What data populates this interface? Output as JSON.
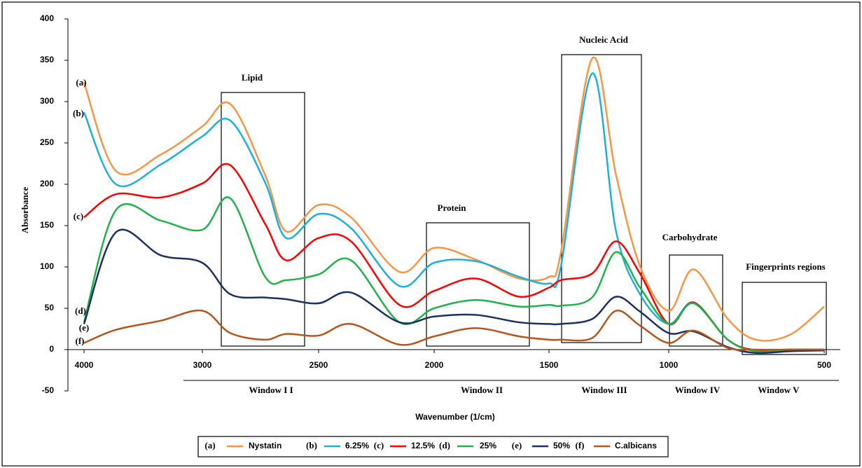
{
  "chart_data": {
    "type": "line",
    "x_label": "Wavenumber (1/cm)",
    "y_label": "Absorbance",
    "x": [
      4000,
      3730,
      3350,
      3000,
      2880,
      2730,
      2640,
      2500,
      2360,
      2150,
      2000,
      1820,
      1630,
      1500,
      1450,
      1320,
      1220,
      1120,
      1000,
      920,
      810,
      720,
      610,
      500
    ],
    "xlim": [
      4000,
      500
    ],
    "xticks": [
      4000,
      3000,
      2500,
      2000,
      1500,
      1000,
      500
    ],
    "ylim": [
      -50,
      400
    ],
    "yticks": [
      -50,
      0,
      50,
      100,
      150,
      200,
      250,
      300,
      350,
      400
    ],
    "series": [
      {
        "name": "Nystatin",
        "label": "(a)",
        "color": "#f79646",
        "values": [
          323,
          216,
          236,
          270,
          297,
          211,
          143,
          175,
          160,
          94,
          123,
          109,
          86,
          88,
          118,
          352,
          211,
          101,
          47,
          97,
          37,
          12,
          18,
          52
        ]
      },
      {
        "name": "6.25%",
        "label": "(b)",
        "color": "#1fb0d8",
        "values": [
          287,
          200,
          224,
          258,
          277,
          202,
          135,
          164,
          147,
          77,
          105,
          107,
          88,
          80,
          101,
          334,
          143,
          67,
          31,
          57,
          12,
          -1,
          0,
          0
        ]
      },
      {
        "name": "12.5%",
        "label": "(c)",
        "color": "#ff0000",
        "values": [
          160,
          188,
          184,
          201,
          223,
          152,
          108,
          135,
          131,
          54,
          71,
          86,
          64,
          75,
          84,
          92,
          131,
          92,
          31,
          57,
          12,
          -1,
          0,
          0
        ]
      },
      {
        "name": "25%",
        "label": "(d)",
        "color": "#22b14c",
        "values": [
          33,
          169,
          156,
          145,
          183,
          88,
          84,
          91,
          108,
          33,
          50,
          60,
          52,
          54,
          53,
          63,
          118,
          75,
          31,
          56,
          12,
          -2,
          0,
          0
        ]
      },
      {
        "name": "50%",
        "label": "(e)",
        "color": "#1f2f5f",
        "values": [
          31,
          142,
          114,
          105,
          67,
          63,
          61,
          56,
          69,
          33,
          40,
          42,
          33,
          31,
          31,
          37,
          64,
          46,
          20,
          22,
          3,
          -4,
          -2,
          -1
        ]
      },
      {
        "name": "C.albicans",
        "label": "(f)",
        "color": "#b5561e",
        "values": [
          8,
          24,
          35,
          47,
          20,
          12,
          19,
          17,
          31,
          6,
          16,
          26,
          16,
          12,
          12,
          14,
          47,
          29,
          8,
          23,
          2,
          0,
          0,
          0
        ]
      }
    ],
    "regions": [
      "Lipid",
      "Protein",
      "Nucleic Acid",
      "Carbohydrate",
      "Fingerprints regions"
    ],
    "windows": [
      "Window I  I",
      "Window II",
      "Window III",
      "Window IV",
      "Window V"
    ]
  }
}
